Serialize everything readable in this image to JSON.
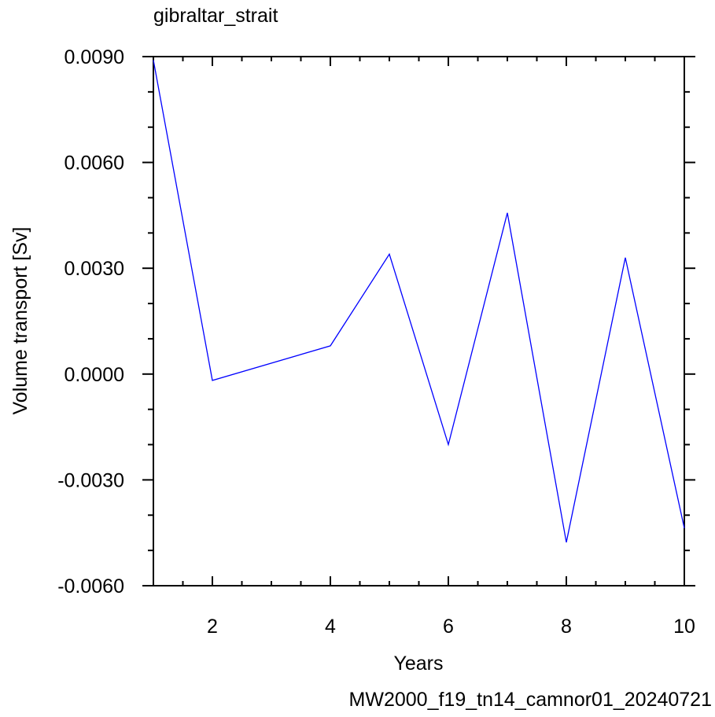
{
  "chart_data": {
    "type": "line",
    "title": "gibraltar_strait",
    "xlabel": "Years",
    "ylabel": "Volume transport [Sv]",
    "annotation": "MW2000_f19_tn14_camnor01_20240721",
    "x": [
      1,
      2,
      4,
      5,
      6,
      7,
      8,
      9,
      10
    ],
    "series": [
      {
        "color": "#0000ff",
        "values": [
          0.0089,
          -0.00018,
          0.0008,
          0.0034,
          -0.002,
          0.00457,
          -0.00477,
          0.0033,
          -0.00437
        ]
      }
    ],
    "xlim": [
      1,
      10
    ],
    "xticks": [
      2,
      4,
      6,
      8,
      10
    ],
    "xminorticks": [
      1.5,
      2.5,
      3,
      3.5,
      4.5,
      5,
      5.5,
      6.5,
      7,
      7.5,
      8.5,
      9,
      9.5
    ],
    "ylim": [
      -0.006,
      0.009
    ],
    "yticks": [
      {
        "value": -0.006,
        "label": "-0.0060"
      },
      {
        "value": -0.003,
        "label": "-0.0030"
      },
      {
        "value": 0,
        "label": "0.0000"
      },
      {
        "value": 0.003,
        "label": "0.0030"
      },
      {
        "value": 0.006,
        "label": "0.0060"
      },
      {
        "value": 0.009,
        "label": "0.0090"
      }
    ],
    "yminorticks": [
      -0.005,
      -0.004,
      -0.002,
      -0.001,
      0.001,
      0.002,
      0.004,
      0.005,
      0.007,
      0.008
    ],
    "annotation_color": "#0000ff"
  }
}
